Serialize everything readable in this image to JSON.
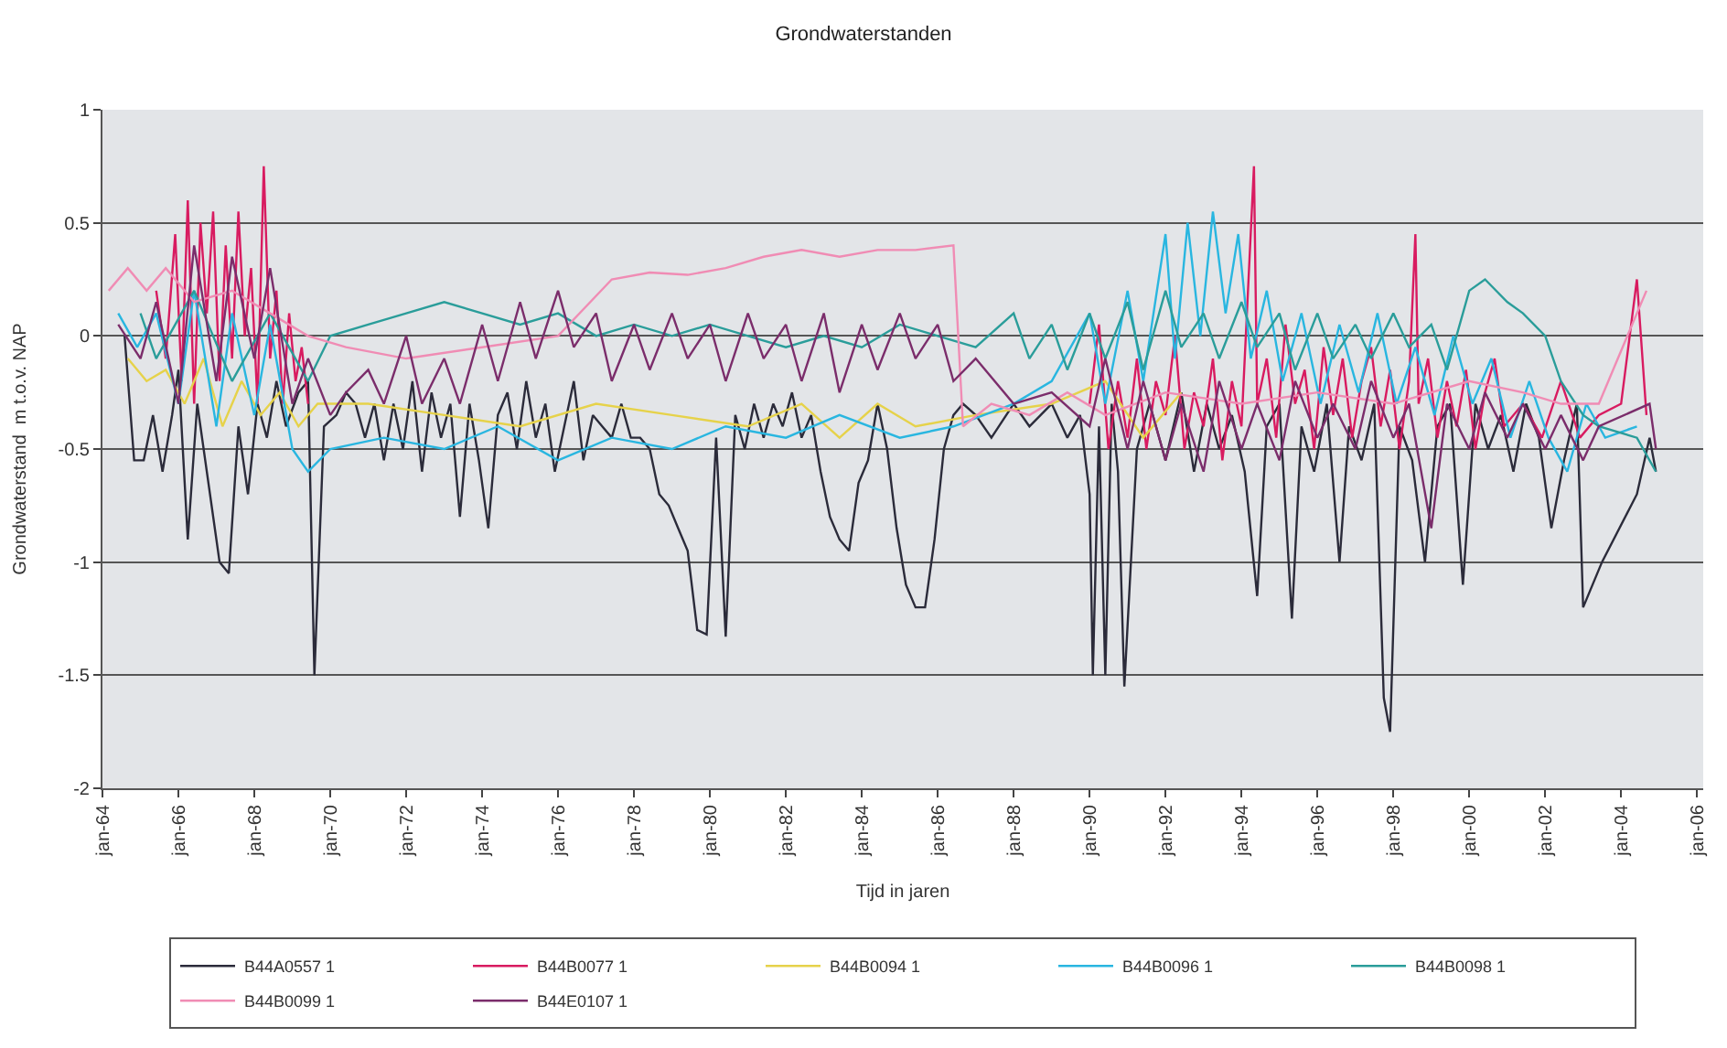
{
  "chart_data": {
    "type": "line",
    "title": "Grondwaterstanden",
    "xlabel": "Tijd in jaren",
    "ylabel": "Grondwaterstand  m t.o.v. NAP",
    "xlim": [
      "1964-01",
      "2006-03"
    ],
    "xticks": [
      {
        "value": "1964-01",
        "label": "jan-64"
      },
      {
        "value": "1966-01",
        "label": "jan-66"
      },
      {
        "value": "1968-01",
        "label": "jan-68"
      },
      {
        "value": "1970-01",
        "label": "jan-70"
      },
      {
        "value": "1972-01",
        "label": "jan-72"
      },
      {
        "value": "1974-01",
        "label": "jan-74"
      },
      {
        "value": "1976-01",
        "label": "jan-76"
      },
      {
        "value": "1978-01",
        "label": "jan-78"
      },
      {
        "value": "1980-01",
        "label": "jan-80"
      },
      {
        "value": "1982-01",
        "label": "jan-82"
      },
      {
        "value": "1984-01",
        "label": "jan-84"
      },
      {
        "value": "1986-01",
        "label": "jan-86"
      },
      {
        "value": "1988-01",
        "label": "jan-88"
      },
      {
        "value": "1990-01",
        "label": "jan-90"
      },
      {
        "value": "1992-01",
        "label": "jan-92"
      },
      {
        "value": "1994-01",
        "label": "jan-94"
      },
      {
        "value": "1996-01",
        "label": "jan-96"
      },
      {
        "value": "1998-01",
        "label": "jan-98"
      },
      {
        "value": "2000-01",
        "label": "jan-00"
      },
      {
        "value": "2002-01",
        "label": "jan-02"
      },
      {
        "value": "2004-01",
        "label": "jan-04"
      },
      {
        "value": "2006-01",
        "label": "jan-06"
      }
    ],
    "ylim": [
      -2,
      1
    ],
    "yticks": [
      -2,
      -1.5,
      -1,
      -0.5,
      0,
      0.5,
      1
    ],
    "grid": "y",
    "legend": "bottom",
    "line_style": "solid",
    "series": [
      {
        "name": "B44A0557 1",
        "color": "#2b2b3a",
        "x": [
          "1964-08",
          "1964-11",
          "1965-02",
          "1965-05",
          "1965-08",
          "1965-11",
          "1966-01",
          "1966-04",
          "1966-07",
          "1966-10",
          "1967-02",
          "1967-05",
          "1967-08",
          "1967-11",
          "1968-02",
          "1968-05",
          "1968-08",
          "1968-11",
          "1969-03",
          "1969-06",
          "1969-08",
          "1969-11",
          "1970-03",
          "1970-06",
          "1970-09",
          "1970-12",
          "1971-03",
          "1971-06",
          "1971-09",
          "1971-12",
          "1972-03",
          "1972-06",
          "1972-09",
          "1972-12",
          "1973-03",
          "1973-06",
          "1973-09",
          "1973-12",
          "1974-03",
          "1974-06",
          "1974-09",
          "1974-12",
          "1975-03",
          "1975-06",
          "1975-09",
          "1975-12",
          "1976-03",
          "1976-06",
          "1976-09",
          "1976-12",
          "1977-03",
          "1977-06",
          "1977-09",
          "1977-12",
          "1978-03",
          "1978-06",
          "1978-09",
          "1978-12",
          "1979-03",
          "1979-06",
          "1979-09",
          "1979-12",
          "1980-03",
          "1980-06",
          "1980-09",
          "1980-12",
          "1981-03",
          "1981-06",
          "1981-09",
          "1981-12",
          "1982-03",
          "1982-06",
          "1982-09",
          "1982-12",
          "1983-03",
          "1983-06",
          "1983-09",
          "1983-12",
          "1984-03",
          "1984-06",
          "1984-09",
          "1984-12",
          "1985-03",
          "1985-06",
          "1985-09",
          "1985-12",
          "1986-03",
          "1986-06",
          "1986-09",
          "1987-01",
          "1987-06",
          "1988-01",
          "1988-06",
          "1989-01",
          "1989-06",
          "1989-10",
          "1990-01",
          "1990-02",
          "1990-04",
          "1990-06",
          "1990-08",
          "1990-10",
          "1990-12",
          "1991-04",
          "1991-08",
          "1992-01",
          "1992-06",
          "1992-10",
          "1993-02",
          "1993-06",
          "1993-10",
          "1994-02",
          "1994-06",
          "1994-09",
          "1995-01",
          "1995-05",
          "1995-08",
          "1995-12",
          "1996-04",
          "1996-08",
          "1996-11",
          "1997-03",
          "1997-07",
          "1997-10",
          "1997-12",
          "1998-03",
          "1998-07",
          "1998-11",
          "1999-03",
          "1999-07",
          "1999-11",
          "2000-03",
          "2000-07",
          "2000-11",
          "2001-03",
          "2001-07",
          "2001-11",
          "2002-03",
          "2002-07",
          "2002-11",
          "2003-01",
          "2003-07",
          "2004-06",
          "2004-10",
          "2004-12"
        ],
        "values": [
          0.0,
          -0.55,
          -0.55,
          -0.35,
          -0.6,
          -0.35,
          -0.15,
          -0.9,
          -0.3,
          -0.6,
          -1.0,
          -1.05,
          -0.4,
          -0.7,
          -0.3,
          -0.45,
          -0.2,
          -0.4,
          -0.25,
          -0.2,
          -1.5,
          -0.4,
          -0.35,
          -0.25,
          -0.3,
          -0.45,
          -0.3,
          -0.55,
          -0.3,
          -0.5,
          -0.2,
          -0.6,
          -0.25,
          -0.45,
          -0.3,
          -0.8,
          -0.3,
          -0.55,
          -0.85,
          -0.35,
          -0.25,
          -0.5,
          -0.2,
          -0.45,
          -0.3,
          -0.6,
          -0.4,
          -0.2,
          -0.55,
          -0.35,
          -0.4,
          -0.45,
          -0.3,
          -0.45,
          -0.45,
          -0.5,
          -0.7,
          -0.75,
          -0.85,
          -0.95,
          -1.3,
          -1.32,
          -0.45,
          -1.33,
          -0.35,
          -0.5,
          -0.3,
          -0.45,
          -0.3,
          -0.4,
          -0.25,
          -0.45,
          -0.35,
          -0.6,
          -0.8,
          -0.9,
          -0.95,
          -0.65,
          -0.55,
          -0.3,
          -0.5,
          -0.85,
          -1.1,
          -1.2,
          -1.2,
          -0.9,
          -0.5,
          -0.35,
          -0.3,
          -0.35,
          -0.45,
          -0.3,
          -0.4,
          -0.3,
          -0.45,
          -0.35,
          -0.7,
          -1.5,
          -0.4,
          -1.5,
          -0.3,
          -0.6,
          -1.55,
          -0.5,
          -0.3,
          -0.55,
          -0.25,
          -0.6,
          -0.3,
          -0.5,
          -0.35,
          -0.6,
          -1.15,
          -0.4,
          -0.3,
          -1.25,
          -0.4,
          -0.6,
          -0.3,
          -1.0,
          -0.4,
          -0.55,
          -0.3,
          -1.6,
          -1.75,
          -0.4,
          -0.55,
          -1.0,
          -0.4,
          -0.3,
          -1.1,
          -0.3,
          -0.5,
          -0.35,
          -0.6,
          -0.3,
          -0.45,
          -0.85,
          -0.55,
          -0.3,
          -1.2,
          -1.0,
          -0.7,
          -0.45,
          -0.6
        ]
      },
      {
        "name": "B44B0077 1",
        "color": "#d81b60",
        "x": [
          "1965-06",
          "1965-09",
          "1965-12",
          "1966-02",
          "1966-04",
          "1966-06",
          "1966-08",
          "1966-10",
          "1966-12",
          "1967-02",
          "1967-04",
          "1967-06",
          "1967-08",
          "1967-10",
          "1967-12",
          "1968-02",
          "1968-04",
          "1968-06",
          "1968-08",
          "1968-10",
          "1968-12",
          "1969-02",
          "1969-04",
          "1969-06",
          "1979-01",
          "1990-01",
          "1990-04",
          "1990-07",
          "1990-10",
          "1991-01",
          "1991-04",
          "1991-07",
          "1991-10",
          "1992-01",
          "1992-04",
          "1992-07",
          "1992-10",
          "1993-01",
          "1993-04",
          "1993-07",
          "1993-10",
          "1994-01",
          "1994-05",
          "1994-06",
          "1994-09",
          "1994-12",
          "1995-03",
          "1995-06",
          "1995-09",
          "1995-12",
          "1996-03",
          "1996-06",
          "1996-09",
          "1996-12",
          "1997-03",
          "1997-06",
          "1997-09",
          "1997-12",
          "1998-03",
          "1998-06",
          "1998-08",
          "1998-09",
          "1998-12",
          "1999-03",
          "1999-06",
          "1999-09",
          "1999-12",
          "2000-03",
          "2000-06",
          "2000-09",
          "2000-12",
          "2001-06",
          "2001-12",
          "2002-06",
          "2002-12",
          "2003-06",
          "2004-01",
          "2004-06",
          "2004-09"
        ],
        "values": [
          0.2,
          -0.1,
          0.45,
          -0.2,
          0.6,
          -0.3,
          0.5,
          0.1,
          0.55,
          -0.2,
          0.4,
          -0.1,
          0.55,
          0.0,
          0.3,
          -0.3,
          0.75,
          -0.1,
          0.2,
          -0.3,
          0.1,
          -0.2,
          -0.05,
          -0.3,
          null,
          -0.3,
          0.05,
          -0.5,
          -0.2,
          -0.45,
          -0.1,
          -0.5,
          -0.2,
          -0.35,
          0.0,
          -0.5,
          -0.25,
          -0.4,
          -0.1,
          -0.55,
          -0.2,
          -0.4,
          0.75,
          -0.3,
          -0.1,
          -0.45,
          0.05,
          -0.3,
          -0.15,
          -0.5,
          -0.05,
          -0.35,
          -0.1,
          -0.45,
          -0.2,
          -0.05,
          -0.4,
          -0.15,
          -0.5,
          -0.2,
          0.45,
          -0.3,
          -0.1,
          -0.45,
          -0.2,
          -0.4,
          -0.15,
          -0.5,
          -0.25,
          -0.1,
          -0.4,
          -0.3,
          -0.45,
          -0.2,
          -0.45,
          -0.35,
          -0.3,
          0.25,
          -0.35
        ]
      },
      {
        "name": "B44B0094 1",
        "color": "#e6d24a",
        "x": [
          "1964-09",
          "1965-03",
          "1965-09",
          "1966-03",
          "1966-09",
          "1967-03",
          "1967-09",
          "1968-03",
          "1968-09",
          "1969-03",
          "1969-09",
          "1971-01",
          "1973-01",
          "1975-01",
          "1977-01",
          "1979-01",
          "1981-01",
          "1982-06",
          "1983-06",
          "1984-06",
          "1985-06",
          "1987-01",
          "1989-01",
          "1990-06",
          "1991-06",
          "1992-06"
        ],
        "values": [
          -0.1,
          -0.2,
          -0.15,
          -0.3,
          -0.1,
          -0.4,
          -0.2,
          -0.35,
          -0.25,
          -0.4,
          -0.3,
          -0.3,
          -0.35,
          -0.4,
          -0.3,
          -0.35,
          -0.4,
          -0.3,
          -0.45,
          -0.3,
          -0.4,
          -0.35,
          -0.3,
          -0.2,
          -0.45,
          -0.25
        ]
      },
      {
        "name": "B44B0096 1",
        "color": "#29b6e0",
        "x": [
          "1964-06",
          "1964-12",
          "1965-06",
          "1966-01",
          "1966-06",
          "1967-01",
          "1967-06",
          "1968-01",
          "1968-06",
          "1969-01",
          "1969-06",
          "1970-01",
          "1971-06",
          "1973-01",
          "1974-06",
          "1976-01",
          "1977-06",
          "1979-01",
          "1980-06",
          "1982-01",
          "1983-06",
          "1985-01",
          "1986-06",
          "1988-01",
          "1989-01",
          "1990-01",
          "1990-06",
          "1991-01",
          "1991-06",
          "1992-01",
          "1992-04",
          "1992-08",
          "1992-12",
          "1993-04",
          "1993-08",
          "1993-12",
          "1994-04",
          "1994-09",
          "1995-02",
          "1995-08",
          "1996-02",
          "1996-08",
          "1997-02",
          "1997-08",
          "1998-02",
          "1998-08",
          "1999-02",
          "1999-08",
          "2000-02",
          "2000-08",
          "2001-02",
          "2001-08",
          "2002-02",
          "2002-08",
          "2003-02",
          "2003-08",
          "2004-06"
        ],
        "values": [
          0.1,
          -0.05,
          0.1,
          -0.3,
          0.2,
          -0.4,
          0.1,
          -0.35,
          0.05,
          -0.5,
          -0.6,
          -0.5,
          -0.45,
          -0.5,
          -0.4,
          -0.55,
          -0.45,
          -0.5,
          -0.4,
          -0.45,
          -0.35,
          -0.45,
          -0.4,
          -0.3,
          -0.2,
          0.1,
          -0.3,
          0.2,
          -0.2,
          0.45,
          -0.1,
          0.5,
          0.0,
          0.55,
          0.1,
          0.45,
          -0.1,
          0.2,
          -0.2,
          0.1,
          -0.3,
          0.05,
          -0.25,
          0.1,
          -0.3,
          -0.05,
          -0.35,
          0.0,
          -0.3,
          -0.1,
          -0.45,
          -0.2,
          -0.45,
          -0.6,
          -0.3,
          -0.45,
          -0.4
        ]
      },
      {
        "name": "B44B0098 1",
        "color": "#2a9d9a",
        "x": [
          "1965-01",
          "1965-06",
          "1966-06",
          "1967-06",
          "1968-06",
          "1969-06",
          "1970-01",
          "1971-01",
          "1972-01",
          "1973-01",
          "1974-01",
          "1975-01",
          "1976-01",
          "1977-01",
          "1978-01",
          "1979-01",
          "1980-01",
          "1981-01",
          "1982-01",
          "1983-01",
          "1984-01",
          "1985-01",
          "1986-01",
          "1987-01",
          "1988-01",
          "1988-06",
          "1989-01",
          "1989-06",
          "1990-01",
          "1990-06",
          "1991-01",
          "1991-06",
          "1992-01",
          "1992-06",
          "1993-01",
          "1993-06",
          "1994-01",
          "1994-06",
          "1995-01",
          "1995-06",
          "1996-01",
          "1996-06",
          "1997-01",
          "1997-06",
          "1998-01",
          "1998-06",
          "1999-01",
          "1999-06",
          "2000-01",
          "2000-06",
          "2001-01",
          "2001-06",
          "2002-01",
          "2002-06",
          "2003-01",
          "2003-06",
          "2004-06",
          "2004-12"
        ],
        "values": [
          0.1,
          -0.1,
          0.2,
          -0.2,
          0.1,
          -0.2,
          0.0,
          0.05,
          0.1,
          0.15,
          0.1,
          0.05,
          0.1,
          0.0,
          0.05,
          0.0,
          0.05,
          0.0,
          -0.05,
          0.0,
          -0.05,
          0.05,
          0.0,
          -0.05,
          0.1,
          -0.1,
          0.05,
          -0.15,
          0.1,
          -0.1,
          0.15,
          -0.15,
          0.2,
          -0.05,
          0.1,
          -0.1,
          0.15,
          -0.05,
          0.1,
          -0.15,
          0.1,
          -0.1,
          0.05,
          -0.1,
          0.1,
          -0.05,
          0.05,
          -0.15,
          0.2,
          0.25,
          0.15,
          0.1,
          0.0,
          -0.2,
          -0.35,
          -0.4,
          -0.45,
          -0.6
        ]
      },
      {
        "name": "B44B0099 1",
        "color": "#f08cb4",
        "x": [
          "1964-03",
          "1964-09",
          "1965-03",
          "1965-09",
          "1966-06",
          "1967-06",
          "1968-06",
          "1969-06",
          "1970-06",
          "1972-01",
          "1974-01",
          "1976-01",
          "1977-06",
          "1978-06",
          "1979-06",
          "1980-06",
          "1981-06",
          "1982-06",
          "1983-06",
          "1984-06",
          "1985-06",
          "1986-06",
          "1986-09",
          "1987-06",
          "1988-06",
          "1989-06",
          "1990-06",
          "1992-01",
          "1994-01",
          "1996-01",
          "1998-01",
          "2000-01",
          "2001-06",
          "2002-06",
          "2003-06",
          "2004-06",
          "2004-09"
        ],
        "values": [
          0.2,
          0.3,
          0.2,
          0.3,
          0.15,
          0.2,
          0.1,
          0.0,
          -0.05,
          -0.1,
          -0.05,
          0.0,
          0.25,
          0.28,
          0.27,
          0.3,
          0.35,
          0.38,
          0.35,
          0.38,
          0.38,
          0.4,
          -0.4,
          -0.3,
          -0.35,
          -0.25,
          -0.35,
          -0.25,
          -0.3,
          -0.25,
          -0.3,
          -0.2,
          -0.25,
          -0.3,
          -0.3,
          0.1,
          0.2
        ]
      },
      {
        "name": "B44E0107 1",
        "color": "#7b2d6b",
        "x": [
          "1964-06",
          "1965-01",
          "1965-06",
          "1966-01",
          "1966-06",
          "1967-01",
          "1967-06",
          "1968-01",
          "1968-06",
          "1969-01",
          "1969-06",
          "1970-01",
          "1970-06",
          "1971-01",
          "1971-06",
          "1972-01",
          "1972-06",
          "1973-01",
          "1973-06",
          "1974-01",
          "1974-06",
          "1975-01",
          "1975-06",
          "1976-01",
          "1976-06",
          "1977-01",
          "1977-06",
          "1978-01",
          "1978-06",
          "1979-01",
          "1979-06",
          "1980-01",
          "1980-06",
          "1981-01",
          "1981-06",
          "1982-01",
          "1982-06",
          "1983-01",
          "1983-06",
          "1984-01",
          "1984-06",
          "1985-01",
          "1985-06",
          "1986-01",
          "1986-06",
          "1987-01",
          "1988-01",
          "1989-01",
          "1990-01",
          "1990-06",
          "1991-01",
          "1991-06",
          "1992-01",
          "1992-06",
          "1993-01",
          "1993-06",
          "1994-01",
          "1994-06",
          "1995-01",
          "1995-06",
          "1996-01",
          "1996-06",
          "1997-01",
          "1997-06",
          "1998-01",
          "1998-06",
          "1999-01",
          "1999-06",
          "2000-01",
          "2000-06",
          "2001-01",
          "2001-06",
          "2002-01",
          "2002-06",
          "2003-01",
          "2003-06",
          "2004-10",
          "2004-12"
        ],
        "values": [
          0.05,
          -0.1,
          0.15,
          -0.3,
          0.4,
          -0.2,
          0.35,
          -0.1,
          0.3,
          -0.3,
          -0.1,
          -0.35,
          -0.25,
          -0.15,
          -0.3,
          0.0,
          -0.3,
          -0.1,
          -0.3,
          0.05,
          -0.2,
          0.15,
          -0.1,
          0.2,
          -0.05,
          0.1,
          -0.2,
          0.05,
          -0.15,
          0.1,
          -0.1,
          0.05,
          -0.2,
          0.1,
          -0.1,
          0.05,
          -0.2,
          0.1,
          -0.25,
          0.05,
          -0.15,
          0.1,
          -0.1,
          0.05,
          -0.2,
          -0.1,
          -0.3,
          -0.25,
          -0.4,
          -0.1,
          -0.5,
          -0.2,
          -0.55,
          -0.3,
          -0.6,
          -0.2,
          -0.5,
          -0.3,
          -0.55,
          -0.2,
          -0.45,
          -0.3,
          -0.5,
          -0.2,
          -0.45,
          -0.3,
          -0.85,
          -0.3,
          -0.5,
          -0.25,
          -0.45,
          -0.3,
          -0.5,
          -0.35,
          -0.55,
          -0.4,
          -0.3,
          -0.5
        ]
      }
    ]
  }
}
